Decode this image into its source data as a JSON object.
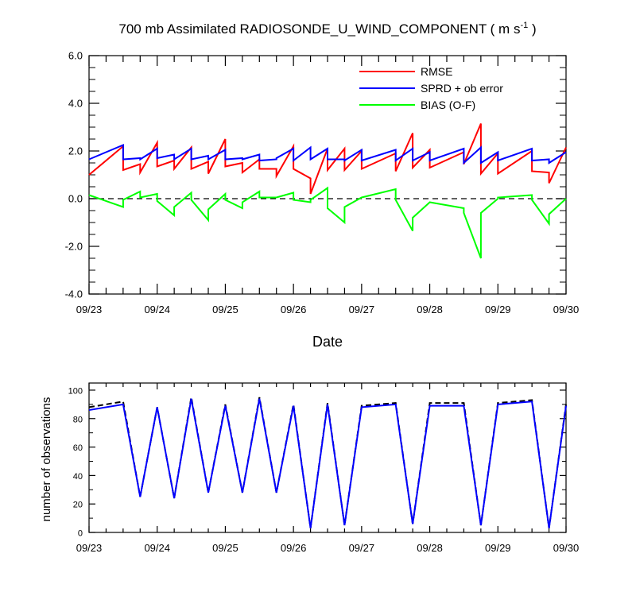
{
  "chart_data": [
    {
      "type": "line",
      "title": "700 mb Assimilated RADIOSONDE_U_WIND_COMPONENT ( m s",
      "title_sup": "-1",
      "title_end": " )",
      "xlabel": "Date",
      "ylabel": "",
      "ylim": [
        -4,
        6
      ],
      "yticks": [
        "-4.0",
        "-2.0",
        "0.0",
        "2.0",
        "4.0",
        "6.0"
      ],
      "xlim": [
        0,
        7
      ],
      "xticks": [
        "09/23",
        "09/24",
        "09/25",
        "09/26",
        "09/27",
        "09/28",
        "09/29",
        "09/30"
      ],
      "zero_line": true,
      "legend": [
        "RMSE",
        "SPRD + ob error",
        "BIAS (O-F)"
      ],
      "legend_position": "top-right",
      "series": [
        {
          "name": "RMSE",
          "color": "#ff0000",
          "x": [
            0,
            0.5,
            0.5,
            0.75,
            0.75,
            1,
            1,
            1.25,
            1.25,
            1.5,
            1.5,
            1.75,
            1.75,
            2,
            2,
            2.25,
            2.25,
            2.5,
            2.5,
            2.75,
            2.75,
            3,
            3,
            3.25,
            3.25,
            3.5,
            3.5,
            3.75,
            3.75,
            4,
            4,
            4.5,
            4.5,
            4.75,
            4.75,
            5,
            5,
            5.5,
            5.5,
            5.75,
            5.75,
            6,
            6,
            6.5,
            6.5,
            6.75,
            6.75,
            7
          ],
          "y": [
            1.0,
            2.2,
            1.2,
            1.45,
            1.1,
            2.35,
            1.35,
            1.6,
            1.25,
            2.15,
            1.25,
            1.55,
            1.05,
            2.5,
            1.35,
            1.5,
            1.1,
            1.65,
            1.25,
            1.25,
            0.95,
            2.2,
            1.25,
            0.85,
            0.2,
            2.1,
            1.2,
            2.1,
            1.2,
            2.0,
            1.25,
            1.9,
            1.15,
            2.75,
            1.3,
            2.05,
            1.3,
            1.95,
            1.45,
            3.15,
            1.05,
            1.9,
            1.05,
            2.0,
            1.15,
            1.1,
            0.65,
            2.15
          ]
        },
        {
          "name": "SPRD + ob error",
          "color": "#0000ff",
          "x": [
            0,
            0.5,
            0.5,
            0.75,
            0.75,
            1,
            1,
            1.25,
            1.25,
            1.5,
            1.5,
            1.75,
            1.75,
            2,
            2,
            2.25,
            2.25,
            2.5,
            2.5,
            2.75,
            2.75,
            3,
            3,
            3.25,
            3.25,
            3.5,
            3.5,
            3.75,
            3.75,
            4,
            4,
            4.5,
            4.5,
            4.75,
            4.75,
            5,
            5,
            5.5,
            5.5,
            5.75,
            5.75,
            6,
            6,
            6.5,
            6.5,
            6.75,
            6.75,
            7
          ],
          "y": [
            1.65,
            2.25,
            1.65,
            1.7,
            1.65,
            2.1,
            1.7,
            1.85,
            1.65,
            2.1,
            1.65,
            1.8,
            1.65,
            2.05,
            1.65,
            1.7,
            1.65,
            1.85,
            1.6,
            1.65,
            1.7,
            2.1,
            1.6,
            2.15,
            1.65,
            2.1,
            1.65,
            1.65,
            1.6,
            2.05,
            1.6,
            2.05,
            1.6,
            2.1,
            1.6,
            1.95,
            1.6,
            2.1,
            1.5,
            2.15,
            1.5,
            1.95,
            1.6,
            2.1,
            1.6,
            1.65,
            1.5,
            1.95
          ]
        },
        {
          "name": "BIAS (O-F)",
          "color": "#00ff00",
          "x": [
            0,
            0.5,
            0.5,
            0.75,
            0.75,
            1,
            1,
            1.25,
            1.25,
            1.5,
            1.5,
            1.75,
            1.75,
            2,
            2,
            2.25,
            2.25,
            2.5,
            2.5,
            2.75,
            2.75,
            3,
            3,
            3.25,
            3.25,
            3.5,
            3.5,
            3.75,
            3.75,
            4,
            4,
            4.5,
            4.5,
            4.75,
            4.75,
            5,
            5,
            5.5,
            5.5,
            5.75,
            5.75,
            6,
            6,
            6.5,
            6.5,
            6.75,
            6.75,
            7
          ],
          "y": [
            0.15,
            -0.35,
            -0.05,
            0.3,
            0.05,
            0.2,
            -0.1,
            -0.7,
            -0.35,
            0.25,
            -0.05,
            -0.9,
            -0.45,
            0.2,
            -0.05,
            -0.4,
            -0.15,
            0.3,
            0.05,
            0.05,
            0.05,
            0.25,
            -0.05,
            -0.15,
            -0.05,
            0.45,
            -0.4,
            -1.0,
            -0.35,
            0.05,
            0.05,
            0.4,
            -0.05,
            -1.35,
            -0.8,
            -0.15,
            -0.15,
            -0.4,
            -0.6,
            -2.5,
            -0.6,
            0.0,
            0.05,
            0.15,
            -0.05,
            -1.05,
            -0.65,
            0.0
          ]
        }
      ]
    },
    {
      "type": "line",
      "title": "",
      "xlabel": "",
      "ylabel": "number of observations",
      "ylim": [
        0,
        105
      ],
      "yticks": [
        "0",
        "20",
        "40",
        "60",
        "80",
        "100"
      ],
      "xlim": [
        0,
        7
      ],
      "xticks": [
        "09/23",
        "09/24",
        "09/25",
        "09/26",
        "09/27",
        "09/28",
        "09/29",
        "09/30"
      ],
      "series": [
        {
          "name": "observations (dashed)",
          "color": "#000000",
          "dashed": true,
          "x": [
            0,
            0.5,
            0.75,
            1,
            1.25,
            1.5,
            1.75,
            2,
            2.25,
            2.5,
            2.75,
            3,
            3.25,
            3.5,
            3.75,
            4,
            4.5,
            4.75,
            5,
            5.5,
            5.75,
            6,
            6.5,
            6.75,
            7
          ],
          "y": [
            88,
            92,
            25,
            88,
            24,
            95,
            28,
            90,
            28,
            95,
            28,
            90,
            3,
            91,
            5,
            89,
            91,
            6,
            91,
            91,
            5,
            91,
            93,
            3,
            90
          ]
        },
        {
          "name": "observations",
          "color": "#0000ff",
          "dashed": false,
          "x": [
            0,
            0.5,
            0.75,
            1,
            1.25,
            1.5,
            1.75,
            2,
            2.25,
            2.5,
            2.75,
            3,
            3.25,
            3.5,
            3.75,
            4,
            4.5,
            4.75,
            5,
            5.5,
            5.75,
            6,
            6.5,
            6.75,
            7
          ],
          "y": [
            86,
            90,
            25,
            88,
            24,
            94,
            28,
            89,
            28,
            94,
            28,
            89,
            3,
            90,
            5,
            88,
            90,
            6,
            89,
            89,
            5,
            90,
            92,
            3,
            89
          ]
        }
      ]
    }
  ]
}
